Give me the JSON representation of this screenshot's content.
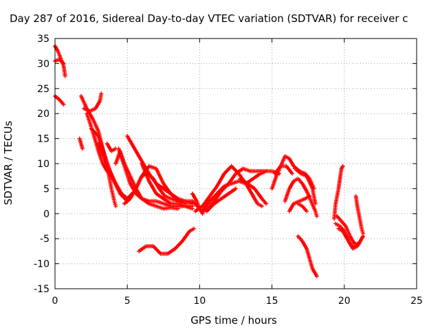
{
  "chart_data": {
    "type": "scatter",
    "title": "Day 287 of 2016, Sidereal Day-to-day VTEC variation (SDTVAR) for receiver c",
    "xlabel": "GPS time / hours",
    "ylabel": "SDTVAR / TECUs",
    "xlim": [
      0,
      25
    ],
    "ylim": [
      -15,
      35
    ],
    "xticks": [
      0,
      5,
      10,
      15,
      20,
      25
    ],
    "yticks": [
      -15,
      -10,
      -5,
      0,
      5,
      10,
      15,
      20,
      25,
      30,
      35
    ],
    "grid": true,
    "marker": "plus",
    "color": "#ff0000",
    "series": [
      {
        "points": [
          [
            0.0,
            33.5
          ],
          [
            0.2,
            32.5
          ],
          [
            0.4,
            31.0
          ],
          [
            0.6,
            29.5
          ],
          [
            0.7,
            27.5
          ]
        ]
      },
      {
        "points": [
          [
            0.0,
            30.5
          ],
          [
            0.3,
            30.8
          ],
          [
            0.6,
            30.0
          ]
        ]
      },
      {
        "points": [
          [
            0.0,
            23.5
          ],
          [
            0.3,
            22.8
          ],
          [
            0.6,
            21.8
          ]
        ]
      },
      {
        "points": [
          [
            1.8,
            23.5
          ],
          [
            2.2,
            21.0
          ],
          [
            2.6,
            19.0
          ],
          [
            3.0,
            16.5
          ],
          [
            3.3,
            13.0
          ],
          [
            3.6,
            9.5
          ],
          [
            3.9,
            5.0
          ],
          [
            4.1,
            2.5
          ],
          [
            4.2,
            1.5
          ]
        ]
      },
      {
        "points": [
          [
            1.7,
            15.0
          ],
          [
            1.9,
            13.0
          ]
        ]
      },
      {
        "points": [
          [
            2.0,
            21.0
          ],
          [
            2.4,
            20.5
          ],
          [
            2.8,
            21.0
          ],
          [
            3.1,
            22.5
          ],
          [
            3.2,
            24.0
          ]
        ]
      },
      {
        "points": [
          [
            2.2,
            20.0
          ],
          [
            2.6,
            16.5
          ],
          [
            3.0,
            12.5
          ],
          [
            3.3,
            10.0
          ],
          [
            3.6,
            8.5
          ]
        ]
      },
      {
        "points": [
          [
            2.5,
            17.0
          ],
          [
            3.0,
            15.5
          ],
          [
            3.4,
            12.0
          ],
          [
            3.8,
            8.5
          ],
          [
            4.2,
            6.0
          ],
          [
            4.6,
            4.0
          ],
          [
            5.0,
            3.0
          ],
          [
            5.5,
            4.5
          ],
          [
            6.0,
            7.5
          ],
          [
            6.5,
            9.5
          ],
          [
            7.0,
            9.0
          ],
          [
            7.5,
            6.0
          ],
          [
            8.0,
            4.0
          ],
          [
            8.5,
            2.5
          ],
          [
            9.0,
            2.0
          ]
        ]
      },
      {
        "points": [
          [
            3.0,
            14.0
          ],
          [
            3.5,
            10.5
          ],
          [
            4.0,
            7.0
          ],
          [
            4.5,
            4.0
          ],
          [
            5.0,
            2.5
          ]
        ]
      },
      {
        "points": [
          [
            3.6,
            14.0
          ],
          [
            3.9,
            12.5
          ],
          [
            4.2,
            13.0
          ]
        ]
      },
      {
        "points": [
          [
            4.2,
            10.0
          ],
          [
            4.5,
            12.5
          ],
          [
            4.8,
            10.0
          ],
          [
            5.2,
            7.5
          ],
          [
            5.6,
            5.0
          ],
          [
            6.0,
            3.0
          ],
          [
            6.5,
            2.0
          ],
          [
            7.0,
            1.5
          ],
          [
            7.5,
            1.0
          ],
          [
            8.0,
            1.2
          ],
          [
            8.5,
            1.0
          ]
        ]
      },
      {
        "points": [
          [
            4.4,
            13.0
          ],
          [
            4.8,
            9.5
          ],
          [
            5.2,
            6.0
          ],
          [
            5.6,
            4.0
          ],
          [
            6.0,
            3.0
          ],
          [
            6.5,
            2.5
          ],
          [
            7.0,
            2.5
          ],
          [
            7.5,
            2.0
          ],
          [
            8.0,
            1.5
          ],
          [
            8.5,
            1.5
          ],
          [
            9.0,
            1.5
          ],
          [
            9.5,
            1.5
          ]
        ]
      },
      {
        "points": [
          [
            4.8,
            2.0
          ],
          [
            5.2,
            3.0
          ],
          [
            5.6,
            5.0
          ],
          [
            6.0,
            7.5
          ],
          [
            6.4,
            8.0
          ],
          [
            6.8,
            7.0
          ],
          [
            7.2,
            5.0
          ],
          [
            7.6,
            3.5
          ],
          [
            8.0,
            3.0
          ],
          [
            8.5,
            2.5
          ],
          [
            9.0,
            2.5
          ],
          [
            9.5,
            2.0
          ]
        ]
      },
      {
        "points": [
          [
            5.0,
            15.5
          ],
          [
            5.5,
            13.0
          ],
          [
            6.0,
            10.5
          ],
          [
            6.5,
            8.0
          ],
          [
            7.0,
            6.0
          ],
          [
            7.5,
            5.0
          ],
          [
            8.0,
            4.0
          ],
          [
            8.5,
            3.0
          ],
          [
            9.0,
            2.5
          ],
          [
            9.5,
            2.5
          ],
          [
            10.0,
            1.0
          ],
          [
            10.2,
            0.0
          ]
        ]
      },
      {
        "points": [
          [
            6.0,
            10.0
          ],
          [
            6.5,
            6.5
          ],
          [
            7.0,
            4.0
          ],
          [
            7.5,
            3.0
          ],
          [
            8.0,
            2.0
          ],
          [
            8.5,
            2.0
          ],
          [
            9.0,
            1.5
          ],
          [
            9.5,
            1.0
          ]
        ]
      },
      {
        "points": [
          [
            5.8,
            -7.5
          ],
          [
            6.3,
            -6.5
          ],
          [
            6.8,
            -6.5
          ],
          [
            7.3,
            -8.0
          ],
          [
            7.8,
            -8.0
          ],
          [
            8.3,
            -7.0
          ],
          [
            8.8,
            -5.5
          ],
          [
            9.3,
            -3.5
          ],
          [
            9.6,
            -3.0
          ]
        ]
      },
      {
        "points": [
          [
            9.5,
            4.0
          ],
          [
            9.8,
            2.5
          ],
          [
            10.0,
            1.0
          ],
          [
            10.3,
            0.5
          ],
          [
            10.6,
            1.0
          ],
          [
            11.0,
            2.5
          ],
          [
            11.5,
            4.5
          ],
          [
            12.0,
            6.0
          ],
          [
            12.5,
            8.0
          ],
          [
            13.0,
            9.0
          ],
          [
            13.5,
            8.5
          ],
          [
            14.0,
            8.5
          ],
          [
            14.5,
            8.5
          ],
          [
            15.0,
            8.5
          ],
          [
            15.5,
            8.0
          ]
        ]
      },
      {
        "points": [
          [
            9.7,
            0.5
          ],
          [
            10.2,
            1.5
          ],
          [
            10.7,
            3.5
          ],
          [
            11.2,
            5.5
          ],
          [
            11.7,
            8.0
          ],
          [
            12.2,
            9.5
          ],
          [
            12.7,
            8.0
          ],
          [
            13.2,
            6.0
          ],
          [
            13.6,
            4.0
          ],
          [
            14.0,
            2.0
          ],
          [
            14.3,
            1.5
          ]
        ]
      },
      {
        "points": [
          [
            10.2,
            0.5
          ],
          [
            10.7,
            2.5
          ],
          [
            11.2,
            4.0
          ],
          [
            11.7,
            5.5
          ],
          [
            12.2,
            6.0
          ],
          [
            12.7,
            6.5
          ],
          [
            13.2,
            6.0
          ],
          [
            13.7,
            7.0
          ],
          [
            14.2,
            8.0
          ],
          [
            14.6,
            8.5
          ]
        ]
      },
      {
        "points": [
          [
            10.5,
            0.5
          ],
          [
            11.0,
            2.0
          ],
          [
            11.5,
            3.0
          ],
          [
            12.0,
            4.0
          ],
          [
            12.5,
            5.0
          ]
        ]
      },
      {
        "points": [
          [
            12.8,
            7.0
          ],
          [
            13.3,
            6.0
          ],
          [
            13.8,
            5.0
          ],
          [
            14.3,
            3.0
          ],
          [
            14.6,
            2.0
          ]
        ]
      },
      {
        "points": [
          [
            15.0,
            5.0
          ],
          [
            15.3,
            7.5
          ],
          [
            15.6,
            9.5
          ],
          [
            15.9,
            11.5
          ],
          [
            16.2,
            11.0
          ],
          [
            16.5,
            9.5
          ],
          [
            16.9,
            8.5
          ],
          [
            17.3,
            8.0
          ],
          [
            17.6,
            7.0
          ],
          [
            17.9,
            5.0
          ]
        ]
      },
      {
        "points": [
          [
            15.2,
            8.0
          ],
          [
            15.6,
            9.5
          ],
          [
            16.0,
            9.5
          ],
          [
            16.4,
            8.0
          ]
        ]
      },
      {
        "points": [
          [
            15.9,
            2.5
          ],
          [
            16.2,
            5.0
          ],
          [
            16.5,
            6.5
          ],
          [
            16.8,
            7.0
          ],
          [
            17.1,
            6.0
          ],
          [
            17.4,
            4.5
          ],
          [
            17.7,
            2.5
          ],
          [
            18.0,
            0.5
          ],
          [
            18.1,
            -0.5
          ]
        ]
      },
      {
        "points": [
          [
            16.2,
            0.5
          ],
          [
            16.5,
            2.0
          ],
          [
            16.9,
            2.5
          ],
          [
            17.3,
            3.0
          ],
          [
            17.6,
            3.5
          ]
        ]
      },
      {
        "points": [
          [
            16.8,
            2.0
          ],
          [
            17.1,
            1.5
          ],
          [
            17.4,
            0.5
          ]
        ]
      },
      {
        "points": [
          [
            16.6,
            9.0
          ],
          [
            17.0,
            8.0
          ],
          [
            17.4,
            7.5
          ],
          [
            17.8,
            5.0
          ],
          [
            18.0,
            2.0
          ]
        ]
      },
      {
        "points": [
          [
            16.8,
            -4.5
          ],
          [
            17.1,
            -5.5
          ],
          [
            17.4,
            -7.0
          ],
          [
            17.6,
            -9.0
          ],
          [
            17.8,
            -11.0
          ],
          [
            18.0,
            -12.0
          ],
          [
            18.1,
            -12.5
          ]
        ]
      },
      {
        "points": [
          [
            19.3,
            -1.0
          ],
          [
            19.4,
            2.0
          ],
          [
            19.5,
            3.5
          ],
          [
            19.6,
            5.0
          ],
          [
            19.7,
            7.0
          ],
          [
            19.8,
            9.0
          ],
          [
            19.9,
            9.5
          ]
        ]
      },
      {
        "points": [
          [
            19.4,
            -2.0
          ],
          [
            19.7,
            -2.5
          ],
          [
            20.0,
            -3.5
          ],
          [
            20.3,
            -5.5
          ],
          [
            20.6,
            -7.0
          ],
          [
            20.9,
            -6.5
          ],
          [
            21.2,
            -5.0
          ],
          [
            21.3,
            -4.5
          ]
        ]
      },
      {
        "points": [
          [
            19.5,
            -0.5
          ],
          [
            19.8,
            -1.5
          ],
          [
            20.1,
            -2.5
          ],
          [
            20.4,
            -4.5
          ],
          [
            20.7,
            -6.0
          ],
          [
            21.0,
            -6.0
          ],
          [
            21.3,
            -4.5
          ]
        ]
      },
      {
        "points": [
          [
            19.6,
            -3.0
          ],
          [
            19.9,
            -3.5
          ],
          [
            20.2,
            -5.0
          ],
          [
            20.5,
            -6.5
          ],
          [
            20.8,
            -6.5
          ],
          [
            21.0,
            -6.0
          ]
        ]
      },
      {
        "points": [
          [
            20.8,
            3.5
          ],
          [
            20.9,
            1.5
          ],
          [
            21.0,
            0.0
          ],
          [
            21.1,
            -1.5
          ],
          [
            21.2,
            -3.0
          ],
          [
            21.3,
            -4.0
          ]
        ]
      }
    ]
  }
}
